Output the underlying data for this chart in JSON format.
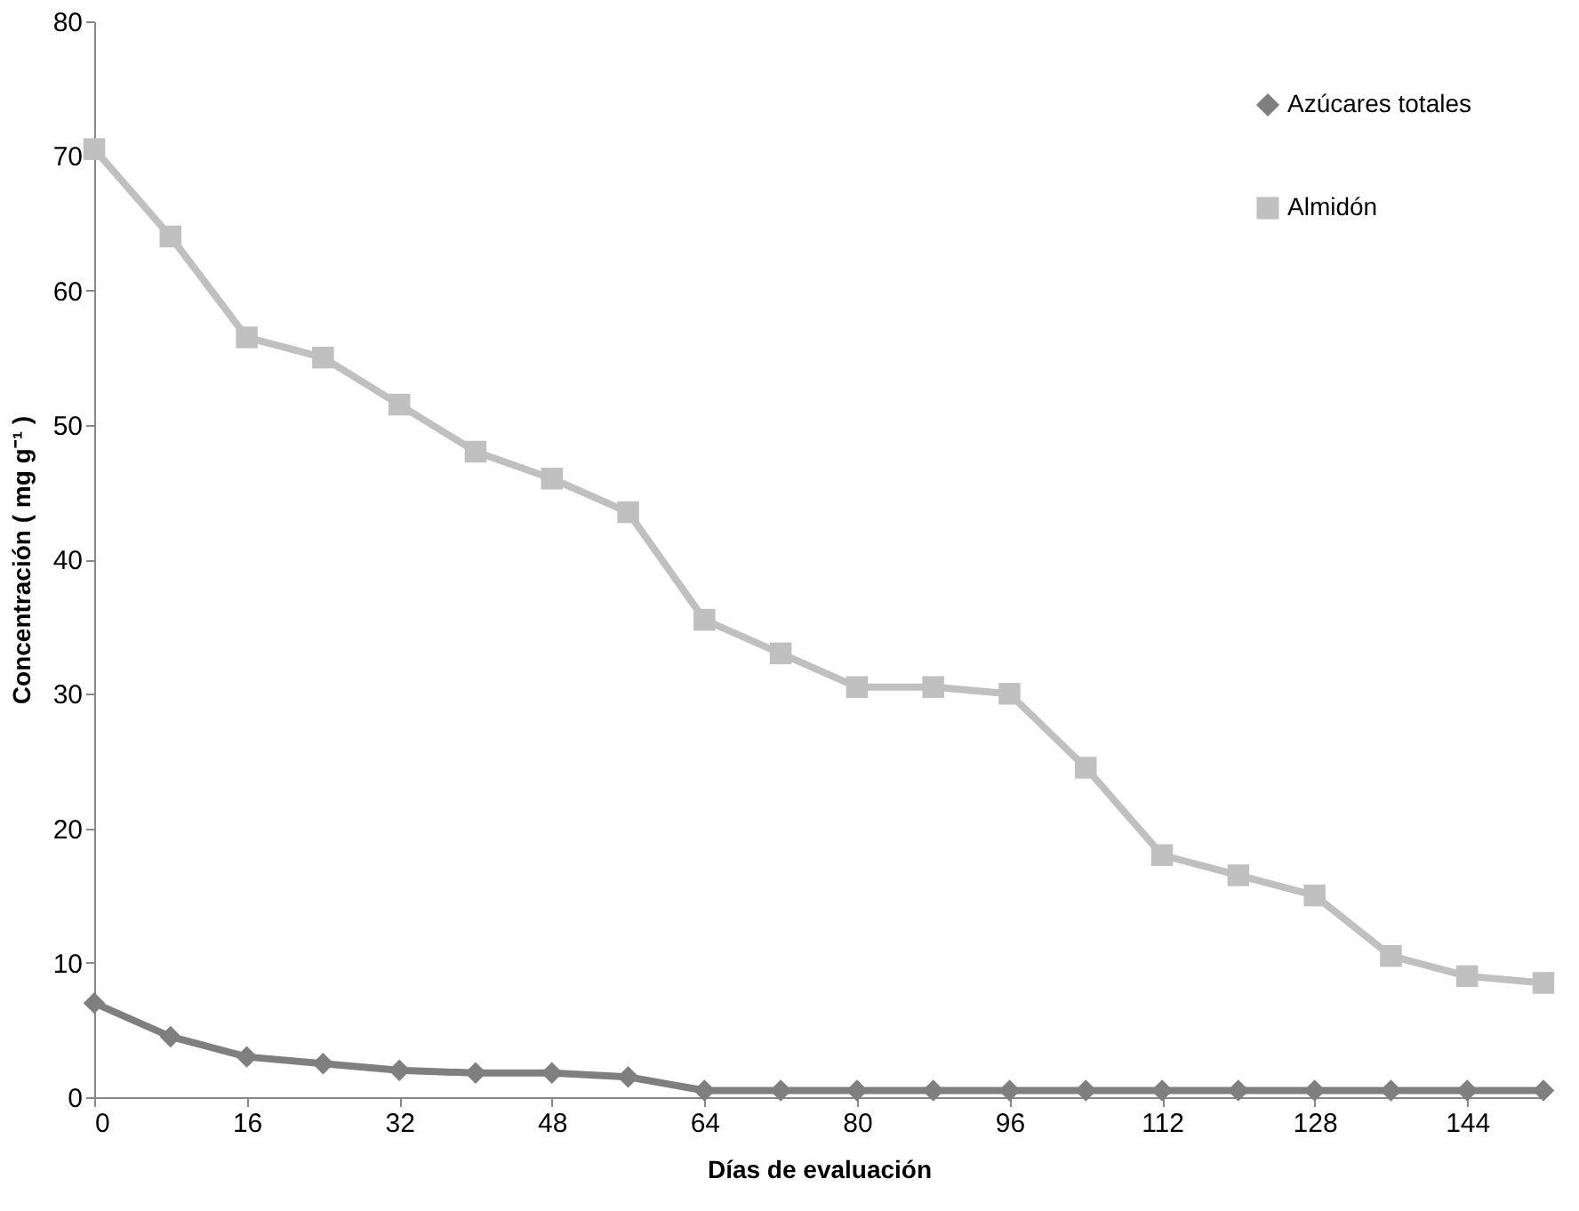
{
  "chart_data": {
    "type": "line",
    "xlabel": "Días de evaluación",
    "ylabel": "Concentración ( mg g⁻¹ )",
    "x": [
      0,
      8,
      16,
      24,
      32,
      40,
      48,
      56,
      64,
      72,
      80,
      88,
      96,
      104,
      112,
      120,
      128,
      136,
      144,
      152
    ],
    "series": [
      {
        "name": "Azúcares totales",
        "color": "#7f7f7f",
        "marker": "diamond",
        "values": [
          7,
          4.5,
          3,
          2.5,
          2,
          1.8,
          1.8,
          1.5,
          0.5,
          0.5,
          0.5,
          0.5,
          0.5,
          0.5,
          0.5,
          0.5,
          0.5,
          0.5,
          0.5,
          0.5
        ]
      },
      {
        "name": "Almidón",
        "color": "#c0c0c0",
        "marker": "square",
        "values": [
          70.5,
          64,
          56.5,
          55,
          51.5,
          48,
          46,
          43.5,
          35.5,
          33,
          30.5,
          30.5,
          30,
          24.5,
          18,
          16.5,
          15,
          10.5,
          9,
          8.5
        ]
      }
    ],
    "xlim": [
      0,
      152
    ],
    "xticks": [
      0,
      16,
      32,
      48,
      64,
      80,
      96,
      112,
      128,
      144
    ],
    "ylim": [
      0,
      80
    ],
    "yticks": [
      0,
      10,
      20,
      30,
      40,
      50,
      60,
      70,
      80
    ],
    "grid": false,
    "legend": "top right",
    "line_style": "solid"
  }
}
